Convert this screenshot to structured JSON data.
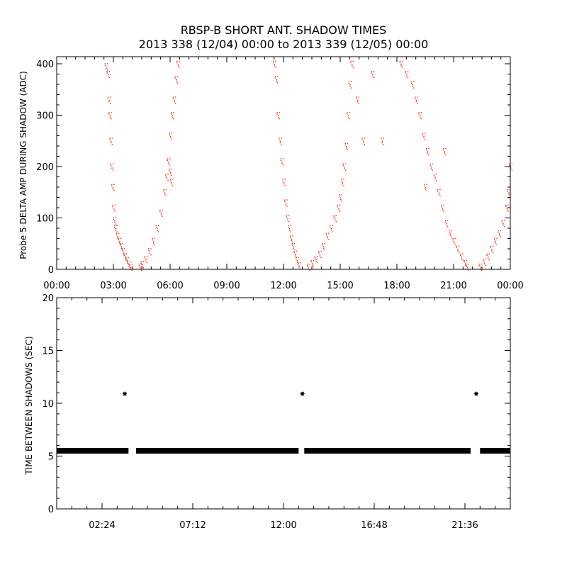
{
  "title": "RBSP-B SHORT ANT. SHADOW TIMES",
  "subtitle": "2013 338 (12/04) 00:00 to 2013 339 (12/05) 00:00",
  "colors": {
    "top_series": "#ff2a10",
    "bottom_series": "#000000",
    "axes": "#000000"
  },
  "chart_data": [
    {
      "type": "scatter",
      "ylabel": "Probe 5 DELTA AMP DURING SHADOW (ADC)",
      "xlabel": "",
      "xlim": [
        "00:00",
        "24:00"
      ],
      "ylim": [
        0,
        400
      ],
      "x_ticks": [
        "00:00",
        "03:00",
        "06:00",
        "09:00",
        "12:00",
        "15:00",
        "18:00",
        "21:00",
        "00:00"
      ],
      "y_ticks": [
        "0",
        "100",
        "200",
        "300",
        "400"
      ],
      "grid": false,
      "marker": "dot",
      "series": [
        {
          "x_unit": "hours",
          "points": [
            [
              2.6,
              395
            ],
            [
              2.7,
              380
            ],
            [
              2.75,
              330
            ],
            [
              2.8,
              300
            ],
            [
              2.85,
              250
            ],
            [
              2.9,
              200
            ],
            [
              2.95,
              160
            ],
            [
              3.0,
              120
            ],
            [
              3.05,
              95
            ],
            [
              3.1,
              80
            ],
            [
              3.2,
              65
            ],
            [
              3.3,
              55
            ],
            [
              3.4,
              45
            ],
            [
              3.5,
              35
            ],
            [
              3.6,
              25
            ],
            [
              3.7,
              18
            ],
            [
              3.8,
              10
            ],
            [
              3.9,
              5
            ],
            [
              4.4,
              5
            ],
            [
              4.5,
              10
            ],
            [
              4.7,
              20
            ],
            [
              4.9,
              35
            ],
            [
              5.1,
              55
            ],
            [
              5.3,
              80
            ],
            [
              5.5,
              110
            ],
            [
              5.7,
              150
            ],
            [
              5.8,
              180
            ],
            [
              5.9,
              210
            ],
            [
              6.0,
              260
            ],
            [
              6.1,
              300
            ],
            [
              6.2,
              330
            ],
            [
              6.3,
              370
            ],
            [
              6.4,
              400
            ],
            [
              6.0,
              190
            ],
            [
              6.05,
              170
            ],
            [
              11.5,
              400
            ],
            [
              11.6,
              370
            ],
            [
              11.7,
              300
            ],
            [
              11.8,
              250
            ],
            [
              11.9,
              210
            ],
            [
              12.0,
              170
            ],
            [
              12.1,
              130
            ],
            [
              12.2,
              100
            ],
            [
              12.3,
              80
            ],
            [
              12.4,
              60
            ],
            [
              12.5,
              45
            ],
            [
              12.6,
              30
            ],
            [
              12.7,
              18
            ],
            [
              12.8,
              8
            ],
            [
              13.3,
              5
            ],
            [
              13.5,
              12
            ],
            [
              13.7,
              20
            ],
            [
              13.9,
              30
            ],
            [
              14.1,
              45
            ],
            [
              14.3,
              65
            ],
            [
              14.5,
              80
            ],
            [
              14.7,
              100
            ],
            [
              14.9,
              120
            ],
            [
              15.0,
              140
            ],
            [
              15.1,
              170
            ],
            [
              15.2,
              200
            ],
            [
              15.3,
              240
            ],
            [
              15.4,
              300
            ],
            [
              15.5,
              360
            ],
            [
              15.6,
              400
            ],
            [
              15.9,
              330
            ],
            [
              16.2,
              250
            ],
            [
              16.7,
              380
            ],
            [
              17.2,
              250
            ],
            [
              18.2,
              400
            ],
            [
              18.5,
              380
            ],
            [
              18.8,
              360
            ],
            [
              19.0,
              330
            ],
            [
              19.2,
              300
            ],
            [
              19.4,
              260
            ],
            [
              19.6,
              230
            ],
            [
              19.8,
              200
            ],
            [
              20.0,
              180
            ],
            [
              20.2,
              150
            ],
            [
              20.4,
              120
            ],
            [
              20.6,
              90
            ],
            [
              20.8,
              70
            ],
            [
              21.0,
              55
            ],
            [
              21.2,
              40
            ],
            [
              21.4,
              25
            ],
            [
              21.6,
              12
            ],
            [
              21.7,
              5
            ],
            [
              19.5,
              160
            ],
            [
              20.5,
              230
            ],
            [
              22.4,
              5
            ],
            [
              22.6,
              15
            ],
            [
              22.8,
              25
            ],
            [
              23.0,
              40
            ],
            [
              23.2,
              55
            ],
            [
              23.4,
              70
            ],
            [
              23.6,
              90
            ],
            [
              23.8,
              120
            ],
            [
              23.9,
              150
            ],
            [
              24.0,
              200
            ]
          ]
        }
      ]
    },
    {
      "type": "scatter",
      "ylabel": "TIME BETWEEN SHADOWS (SEC)",
      "xlabel": "",
      "ylim": [
        0,
        20
      ],
      "x_ticks": [
        "02:24",
        "07:12",
        "12:00",
        "16:48",
        "21:36"
      ],
      "y_ticks": [
        "0",
        "5",
        "10",
        "15",
        "20"
      ],
      "grid": false,
      "marker": "asterisk",
      "series": [
        {
          "baseline_value": 5.5,
          "baseline_segments_hours": [
            [
              0.0,
              3.8
            ],
            [
              4.2,
              12.8
            ],
            [
              13.1,
              21.9
            ],
            [
              22.4,
              24.0
            ]
          ],
          "outliers": [
            {
              "x_hours": 3.6,
              "y": 10.9
            },
            {
              "x_hours": 13.0,
              "y": 10.9
            },
            {
              "x_hours": 22.2,
              "y": 10.9
            }
          ]
        }
      ]
    }
  ]
}
